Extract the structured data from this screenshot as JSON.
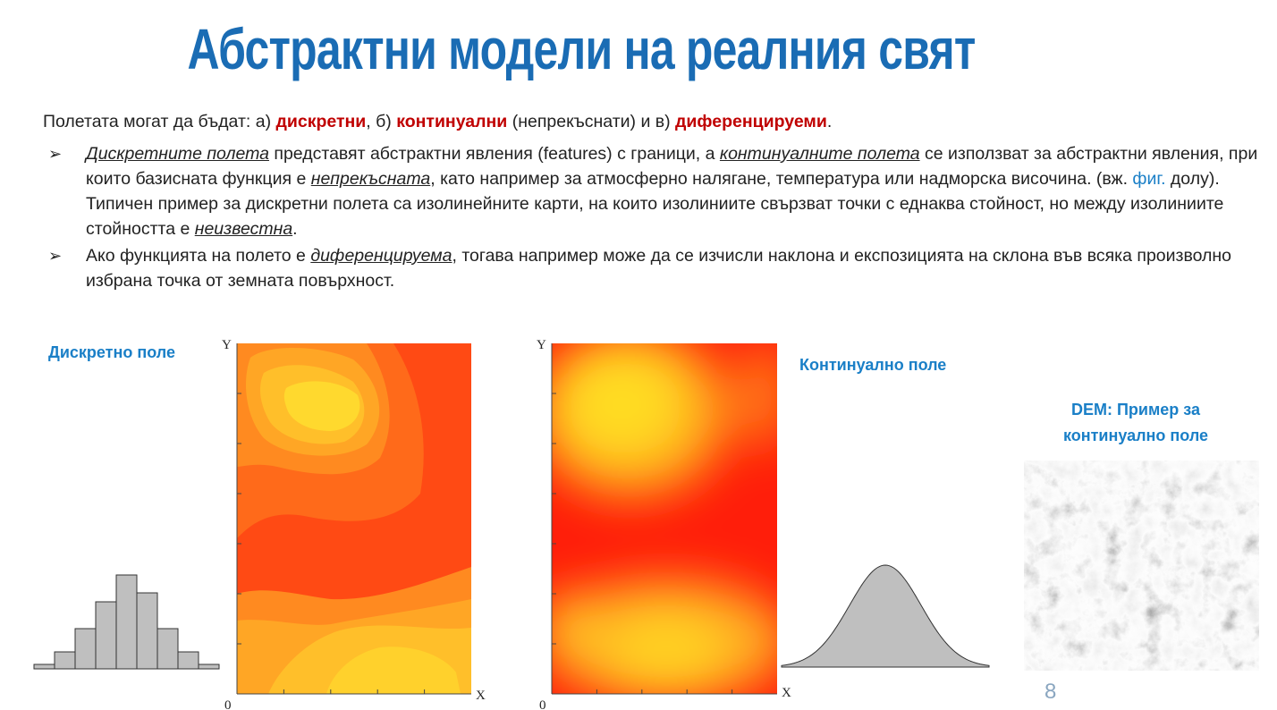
{
  "title": "Абстрактни модели на реалния свят",
  "intro": {
    "t1": "Полетата могат да бъдат: а) ",
    "r1": "дискретни",
    "t2": ", б) ",
    "r2": "континуални",
    "t3": " (непрекъснати) и в) ",
    "r3": "диференцируеми",
    "t4": "."
  },
  "bullet1": {
    "u1": "Дискретните полета",
    "t1": " представят абстрактни явления (features) с граници, а ",
    "u2": "континуалните полета",
    "t2": " се използват за абстрактни явления, при които базисната функция е ",
    "u3": "непрекъсната",
    "t3": ", като например за атмосферно налягане, температура или надморска височина. (вж. ",
    "link": "фиг.",
    "t4": " долу). Типичен пример за дискретни полета са изолинейните карти, на които изолиниите свързват точки с еднаква стойност, но между изолиниите стойността е ",
    "u4": "неизвестна",
    "t5": "."
  },
  "bullet2": {
    "t1": "Ако функцията на полето е ",
    "u1": "диференцируема",
    "t2": ", тогава например може да се изчисли наклона и експозицията на склона във всяка произволно избрана точка от земната повърхност."
  },
  "arrow_glyph": "➢",
  "labels": {
    "discrete": "Дискретно поле",
    "continuous": "Континуално поле",
    "dem": "DEM: Пример за континуално поле"
  },
  "axes": {
    "y": "Y",
    "x": "X",
    "origin": "0"
  },
  "histogram": [
    5,
    19,
    45,
    75,
    105,
    85,
    45,
    19,
    5
  ],
  "colors": {
    "title": "#1a6cb4",
    "accent_red": "#c00000",
    "link": "#1a7fc7",
    "fill_gray": "#bfbfbf"
  },
  "page_number": "8"
}
